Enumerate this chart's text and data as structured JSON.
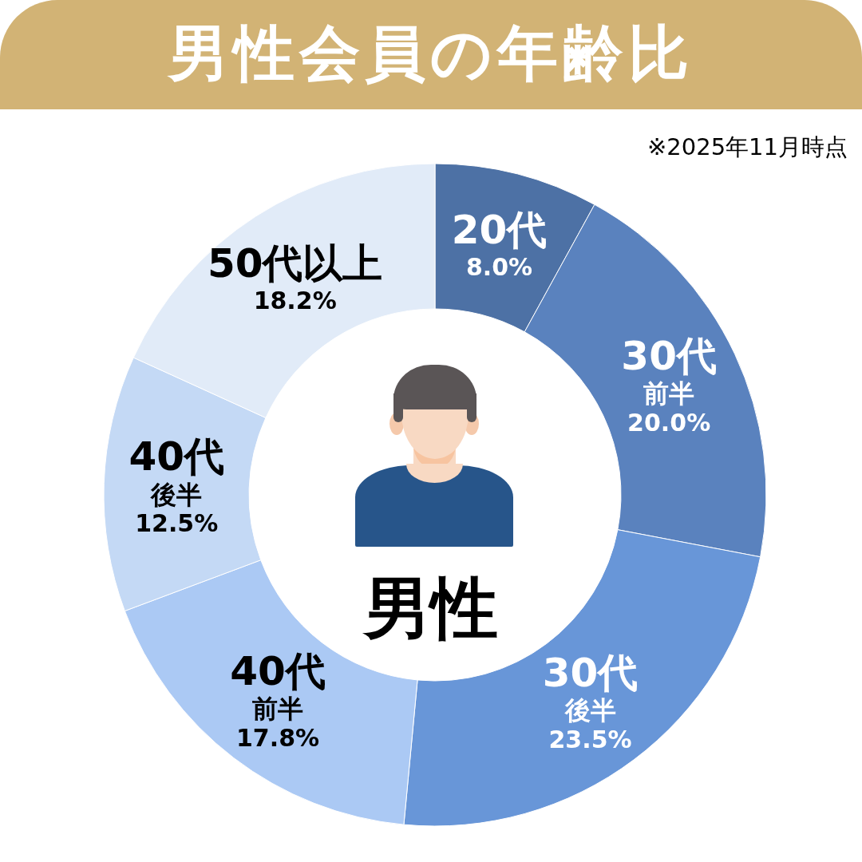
{
  "chart_data": {
    "type": "donut",
    "title": "男性会員の年齢比",
    "categories": [
      "20代",
      "30代前半",
      "30代後半",
      "40代前半",
      "40代後半",
      "50代以上"
    ],
    "values": [
      8.0,
      20.0,
      23.5,
      17.8,
      12.5,
      18.2
    ],
    "colors": [
      "#4d71a5",
      "#5a82be",
      "#6896d8",
      "#abc9f4",
      "#c4d9f5",
      "#e1ebf8"
    ],
    "value_labels": [
      "8.0%",
      "20.0%",
      "23.5%",
      "17.8%",
      "12.5%",
      "18.2%"
    ],
    "annotations": [
      "※2025年11月時点",
      "男性"
    ]
  }
}
